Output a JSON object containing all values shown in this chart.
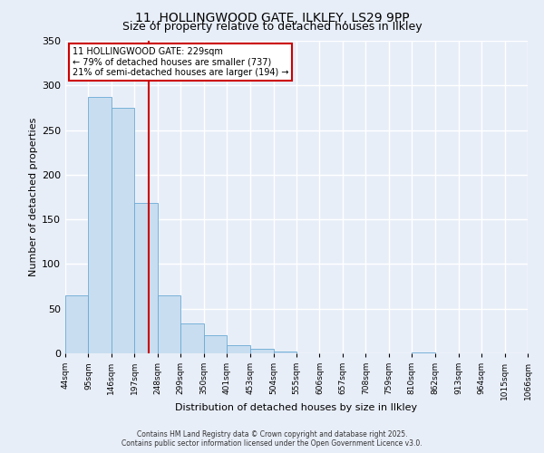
{
  "title_line1": "11, HOLLINGWOOD GATE, ILKLEY, LS29 9PP",
  "title_line2": "Size of property relative to detached houses in Ilkley",
  "xlabel": "Distribution of detached houses by size in Ilkley",
  "ylabel": "Number of detached properties",
  "bar_values": [
    65,
    287,
    275,
    168,
    65,
    33,
    20,
    9,
    5,
    2,
    0,
    0,
    0,
    0,
    0,
    1,
    0,
    0,
    0,
    0
  ],
  "bin_edges": [
    44,
    95,
    146,
    197,
    248,
    299,
    350,
    401,
    453,
    504,
    555,
    606,
    657,
    708,
    759,
    810,
    862,
    913,
    964,
    1015,
    1066
  ],
  "tick_labels": [
    "44sqm",
    "95sqm",
    "146sqm",
    "197sqm",
    "248sqm",
    "299sqm",
    "350sqm",
    "401sqm",
    "453sqm",
    "504sqm",
    "555sqm",
    "606sqm",
    "657sqm",
    "708sqm",
    "759sqm",
    "810sqm",
    "862sqm",
    "913sqm",
    "964sqm",
    "1015sqm",
    "1066sqm"
  ],
  "property_size": 229,
  "property_label": "11 HOLLINGWOOD GATE: 229sqm",
  "annotation_line2": "← 79% of detached houses are smaller (737)",
  "annotation_line3": "21% of semi-detached houses are larger (194) →",
  "bar_color": "#c8ddf0",
  "bar_edge_color": "#6aaad4",
  "vline_color": "#cc0000",
  "annotation_box_edge": "#cc0000",
  "background_color": "#e8eef8",
  "plot_bg_color": "#e8eef8",
  "ylim": [
    0,
    350
  ],
  "yticks": [
    0,
    50,
    100,
    150,
    200,
    250,
    300,
    350
  ],
  "footer_line1": "Contains HM Land Registry data © Crown copyright and database right 2025.",
  "footer_line2": "Contains public sector information licensed under the Open Government Licence v3.0."
}
